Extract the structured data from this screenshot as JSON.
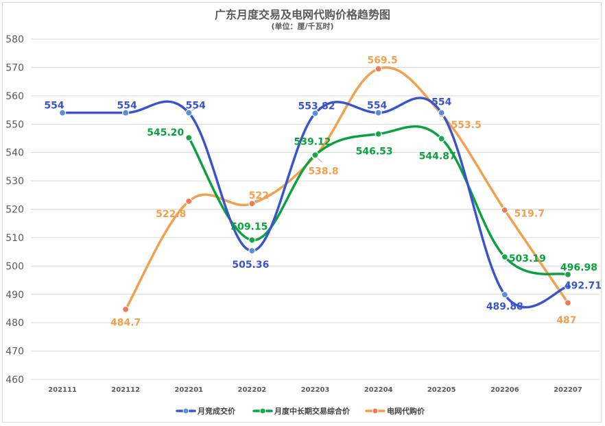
{
  "chart_data": {
    "type": "line",
    "title": "广东月度交易及电网代购价格趋势图",
    "subtitle": "(单位：厘/千瓦时)",
    "categories": [
      "202111",
      "202112",
      "202201",
      "202202",
      "202203",
      "202204",
      "202205",
      "202206",
      "202207"
    ],
    "ylim": [
      460,
      580
    ],
    "yticks": [
      460,
      470,
      480,
      490,
      500,
      510,
      520,
      530,
      540,
      550,
      560,
      570,
      580
    ],
    "grid": true,
    "legend_position": "bottom",
    "series": [
      {
        "name": "月竞成交价",
        "color": "#3a53cf",
        "marker_color": "#5b8ed6",
        "values": [
          554,
          554,
          554,
          505.36,
          553.82,
          554,
          554,
          489.88,
          492.71
        ],
        "labels": [
          "554",
          "554",
          "554",
          "505.36",
          "553.82",
          "554",
          "554",
          "489.88",
          "492.71"
        ]
      },
      {
        "name": "月度中长期交易综合价",
        "color": "#0aa23e",
        "marker_color": "#15a84a",
        "values": [
          null,
          null,
          545.2,
          509.15,
          539.12,
          546.53,
          544.87,
          503.19,
          496.98
        ],
        "labels": [
          null,
          null,
          "545.20",
          "509.15",
          "539.12",
          "546.53",
          "544.87",
          "503.19",
          "496.98"
        ]
      },
      {
        "name": "电网代购价",
        "color": "#f2a04e",
        "marker_color": "#ee7a58",
        "values": [
          null,
          484.7,
          522.8,
          522,
          538.8,
          569.5,
          553.5,
          519.7,
          487
        ],
        "labels": [
          null,
          "484.7",
          "522.8",
          "522",
          "538.8",
          "569.5",
          "553.5",
          "519.7",
          "487"
        ]
      }
    ]
  }
}
